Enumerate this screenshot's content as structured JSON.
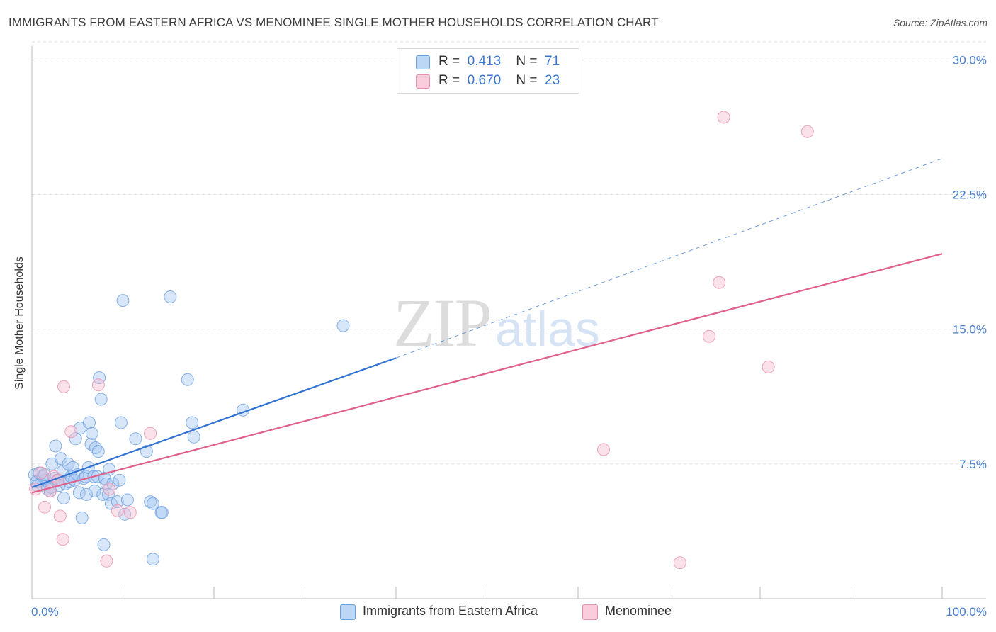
{
  "header": {
    "title": "IMMIGRANTS FROM EASTERN AFRICA VS MENOMINEE SINGLE MOTHER HOUSEHOLDS CORRELATION CHART",
    "source": "Source: ZipAtlas.com"
  },
  "watermark": {
    "zip": "ZIP",
    "atlas": "atlas"
  },
  "legend_top": {
    "rows": [
      {
        "r_label": "R =",
        "r_value": "0.413",
        "n_label": "N =",
        "n_value": "71"
      },
      {
        "r_label": "R =",
        "r_value": "0.670",
        "n_label": "N =",
        "n_value": "23"
      }
    ]
  },
  "legend_bottom": {
    "items": [
      {
        "label": "Immigrants from Eastern Africa"
      },
      {
        "label": "Menominee"
      }
    ]
  },
  "chart_data": {
    "type": "scatter",
    "title": "IMMIGRANTS FROM EASTERN AFRICA VS MENOMINEE SINGLE MOTHER HOUSEHOLDS CORRELATION CHART",
    "xlabel": "",
    "ylabel": "Single Mother Households",
    "xlim": [
      0,
      100
    ],
    "ylim": [
      0,
      31
    ],
    "x_tick_labels": [
      "0.0%",
      "100.0%"
    ],
    "y_ticks": [
      7.5,
      15.0,
      22.5,
      30.0
    ],
    "y_tick_labels": [
      "7.5%",
      "15.0%",
      "22.5%",
      "30.0%"
    ],
    "grid": true,
    "legend_position": "top-center",
    "series": [
      {
        "name": "Immigrants from Eastern Africa",
        "color": "#a7c8f2",
        "edge_color": "#6c9fe0",
        "line_color": "#2f72d3",
        "R": 0.413,
        "N": 71,
        "trend": {
          "x_start": 0,
          "y_start": 6.2,
          "x_solid_end": 40,
          "y_solid_end": 13.4,
          "x_dashed_end": 100,
          "y_dashed_end": 24.5
        },
        "points": [
          [
            0.3,
            6.9
          ],
          [
            0.5,
            6.5
          ],
          [
            0.8,
            7.0
          ],
          [
            1.0,
            6.4
          ],
          [
            1.2,
            6.8
          ],
          [
            1.5,
            6.6
          ],
          [
            1.7,
            6.1
          ],
          [
            2.0,
            6.0
          ],
          [
            2.2,
            7.5
          ],
          [
            2.5,
            6.7
          ],
          [
            2.6,
            8.5
          ],
          [
            2.8,
            6.6
          ],
          [
            3.0,
            6.3
          ],
          [
            3.2,
            7.8
          ],
          [
            3.4,
            7.1
          ],
          [
            3.5,
            5.6
          ],
          [
            3.7,
            6.4
          ],
          [
            4.0,
            7.5
          ],
          [
            4.1,
            6.5
          ],
          [
            4.3,
            6.8
          ],
          [
            4.5,
            7.3
          ],
          [
            4.7,
            6.6
          ],
          [
            4.8,
            8.9
          ],
          [
            5.0,
            6.9
          ],
          [
            5.2,
            5.9
          ],
          [
            5.3,
            9.5
          ],
          [
            5.5,
            4.5
          ],
          [
            5.7,
            6.7
          ],
          [
            5.9,
            6.8
          ],
          [
            6.0,
            5.8
          ],
          [
            6.2,
            7.3
          ],
          [
            6.3,
            9.8
          ],
          [
            6.5,
            8.6
          ],
          [
            6.6,
            9.2
          ],
          [
            6.8,
            6.8
          ],
          [
            6.9,
            6.0
          ],
          [
            7.0,
            8.4
          ],
          [
            7.2,
            6.8
          ],
          [
            7.3,
            8.2
          ],
          [
            7.4,
            12.3
          ],
          [
            7.6,
            11.1
          ],
          [
            7.8,
            5.8
          ],
          [
            7.9,
            3.0
          ],
          [
            8.0,
            6.7
          ],
          [
            8.2,
            6.4
          ],
          [
            8.4,
            5.8
          ],
          [
            8.5,
            7.2
          ],
          [
            8.7,
            5.3
          ],
          [
            8.9,
            6.4
          ],
          [
            9.4,
            5.4
          ],
          [
            9.6,
            6.6
          ],
          [
            9.8,
            9.8
          ],
          [
            10.0,
            16.6
          ],
          [
            10.2,
            4.7
          ],
          [
            10.5,
            5.5
          ],
          [
            11.4,
            8.9
          ],
          [
            12.6,
            8.2
          ],
          [
            13.0,
            5.4
          ],
          [
            13.3,
            5.3
          ],
          [
            14.2,
            4.8
          ],
          [
            14.3,
            4.8
          ],
          [
            13.3,
            2.2
          ],
          [
            15.2,
            16.8
          ],
          [
            17.1,
            12.2
          ],
          [
            17.6,
            9.8
          ],
          [
            17.8,
            9.0
          ],
          [
            23.2,
            10.5
          ],
          [
            34.2,
            15.2
          ],
          [
            0.6,
            6.3
          ],
          [
            1.4,
            6.9
          ],
          [
            2.1,
            6.2
          ]
        ]
      },
      {
        "name": "Menominee",
        "color": "#f7bfd0",
        "edge_color": "#e88fab",
        "line_color": "#e0608a",
        "R": 0.67,
        "N": 23,
        "trend": {
          "x_start": 0,
          "y_start": 5.9,
          "x_end": 100,
          "y_end": 19.2
        },
        "points": [
          [
            0.4,
            6.1
          ],
          [
            1.0,
            7.0
          ],
          [
            1.4,
            5.1
          ],
          [
            2.0,
            6.0
          ],
          [
            2.4,
            6.8
          ],
          [
            3.1,
            4.6
          ],
          [
            3.4,
            3.3
          ],
          [
            3.5,
            11.8
          ],
          [
            4.3,
            9.3
          ],
          [
            7.3,
            11.9
          ],
          [
            8.2,
            2.1
          ],
          [
            8.5,
            6.1
          ],
          [
            9.4,
            4.9
          ],
          [
            10.8,
            4.8
          ],
          [
            13.0,
            9.2
          ],
          [
            62.8,
            8.3
          ],
          [
            71.2,
            2.0
          ],
          [
            75.5,
            17.6
          ],
          [
            74.4,
            14.6
          ],
          [
            76.0,
            26.8
          ],
          [
            80.9,
            12.9
          ],
          [
            85.2,
            26.0
          ],
          [
            2.9,
            6.6
          ]
        ]
      }
    ]
  }
}
